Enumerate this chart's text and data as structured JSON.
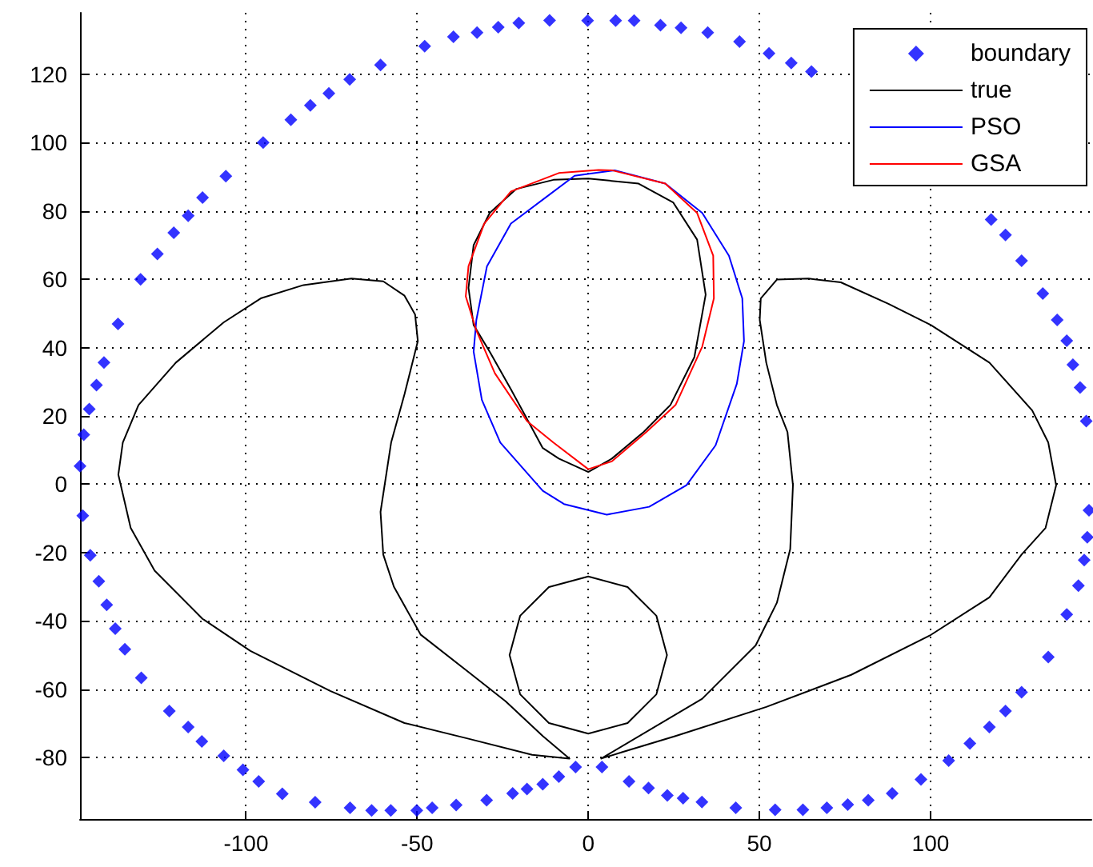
{
  "chart_data": {
    "type": "line",
    "xlim": [
      -148.5,
      147
    ],
    "ylim": [
      -98,
      138
    ],
    "xticks": [
      -100,
      -50,
      0,
      50,
      100
    ],
    "yticks": [
      -80,
      -60,
      -40,
      -20,
      0,
      20,
      40,
      60,
      80,
      100,
      120
    ],
    "grid": true,
    "legend": "top right",
    "marker": "none",
    "line_style": "solid",
    "series": [
      {
        "name": "boundary",
        "type": "scatter",
        "marker": "diamond",
        "color": "#0000ff",
        "x": [
          -147.4,
          -145.8,
          -143.7,
          -141.5,
          -137.4,
          -130.8,
          -125.9,
          -121.1,
          -116.9,
          -112.7,
          -105.9,
          -95,
          -86.9,
          -81.2,
          -75.8,
          -69.7,
          -60.7,
          -47.8,
          -39.4,
          -32.5,
          -26.3,
          -20.3,
          -11.3,
          -0.2,
          8,
          13.4,
          21.1,
          27.1,
          34.9,
          44.2,
          52.8,
          59.3,
          65.2,
          117.7,
          121.9,
          126.6,
          132.8,
          137,
          139.8,
          141.6,
          143.7,
          145.5,
          146.3,
          145.8,
          144.9,
          143.2,
          139.8,
          134.4,
          126.6,
          121.9,
          117.2,
          111.5,
          105.3,
          97.2,
          88.8,
          81.8,
          75.8,
          69.7,
          62.7,
          54.6,
          43.1,
          33.2,
          27.7,
          23.1,
          17.6,
          11.9,
          4,
          -3.7,
          -8.6,
          -13.3,
          -17.9,
          -22.1,
          -29.7,
          -38.6,
          -45.6,
          -50.1,
          -57.7,
          -63.3,
          -69.6,
          -79.8,
          -89.4,
          -96.3,
          -100.9,
          -106.5,
          -112.9,
          -116.9,
          -122.4,
          -130.6,
          -135.4,
          -138.2,
          -140.7,
          -143,
          -145.5,
          -147.7,
          -148.5
        ],
        "values": [
          14.5,
          22,
          29,
          35.6,
          46.9,
          60,
          67.4,
          73.6,
          78.6,
          83.9,
          90.2,
          100,
          106.7,
          110.9,
          114.4,
          118.5,
          122.7,
          128.2,
          131,
          132.2,
          133.8,
          135,
          135.8,
          135.7,
          135.7,
          135.7,
          134.4,
          133.6,
          132.2,
          129.6,
          126.1,
          123.3,
          120.8,
          77.5,
          73,
          65.4,
          55.8,
          48.1,
          42,
          35,
          28.3,
          18.5,
          -7.6,
          -15.5,
          -22.2,
          -29.7,
          -38.1,
          -50.6,
          -60.9,
          -66.4,
          -71.1,
          -75.9,
          -80.9,
          -86.4,
          -90.5,
          -92.5,
          -93.8,
          -94.7,
          -95.3,
          -95.3,
          -94.7,
          -93,
          -91.9,
          -91.1,
          -88.9,
          -87,
          -82.8,
          -82.8,
          -85.6,
          -87.8,
          -89.2,
          -90.5,
          -92.5,
          -93.9,
          -94.7,
          -95.5,
          -95.5,
          -95.5,
          -94.7,
          -93.1,
          -90.6,
          -87,
          -83.6,
          -79.5,
          -75.3,
          -71.1,
          -66.4,
          -56.7,
          -48.3,
          -42.3,
          -35.3,
          -28.4,
          -20.8,
          -9.2,
          5.3
        ]
      },
      {
        "name": "true",
        "color": "#000000",
        "x": [
          -5.5,
          -13.3,
          -24.1,
          -35,
          -49,
          -56.8,
          -59.9,
          -60.7,
          null,
          -60.7,
          -57.6,
          -53.7,
          -49.8,
          null,
          -49.8,
          -50.6,
          -53.7,
          -59.9,
          -69.2,
          -83.2,
          -95.7,
          -106.5,
          -120.5,
          -131.4,
          -136,
          -137.3,
          null,
          -137.3,
          -133.7,
          -126.7,
          -112.7,
          -98.7,
          -75.4,
          -53.7,
          -35,
          -16.4,
          -5.5,
          null,
          3.8,
          33.3,
          48.9,
          55.1,
          59,
          59.8,
          null,
          59.8,
          58.2,
          55.1,
          52,
          50.1,
          null,
          50.1,
          50.4,
          55.1,
          64.4,
          73.8,
          87.7,
          100.1,
          117.2,
          129.7,
          134.4,
          136.7,
          null,
          136.7,
          133.6,
          126.6,
          117.2,
          100.1,
          76.8,
          52,
          25.5,
          10,
          3.8,
          null,
          -35,
          -33.5,
          -28.8,
          -21.1,
          -10.2,
          0,
          14.7,
          24.8,
          31.8,
          34.3,
          null,
          34.3,
          31,
          24,
          16.2,
          6.9,
          0,
          -8.6,
          -13.3,
          -22.6,
          -28.8,
          -33.5,
          -35,
          null,
          -23,
          -19.9,
          -11.5,
          0,
          11.5,
          19.9,
          23,
          null,
          23,
          19.9,
          11.5,
          0,
          -11.5,
          -19.9,
          -23
        ],
        "values": [
          -80.3,
          -73.7,
          -63.6,
          -55,
          -44,
          -30,
          -20.6,
          -8.1,
          null,
          -8.1,
          12.2,
          26.3,
          41.9,
          null,
          41.9,
          49.7,
          55.2,
          59.4,
          60.2,
          58.3,
          54.4,
          47.4,
          35.6,
          23.2,
          12.2,
          2.8,
          null,
          2.8,
          -12.8,
          -25.3,
          -39.4,
          -48.8,
          -60.5,
          -69.9,
          -74.5,
          -79.2,
          -80.3,
          null,
          -80.3,
          -62.8,
          -47.2,
          -34.7,
          -19,
          -0.3,
          null,
          -0.3,
          15.3,
          23.2,
          35.6,
          48.1,
          null,
          48.1,
          54.4,
          59.9,
          60.2,
          59.1,
          52.8,
          46.6,
          35.6,
          21.6,
          12.2,
          -0.3,
          null,
          -0.3,
          -12.8,
          -20.6,
          -33.1,
          -44.1,
          -55.8,
          -65.2,
          -73.7,
          -78.4,
          -80.3,
          null,
          57.5,
          70,
          79.4,
          86.4,
          89.1,
          89.5,
          88,
          82.5,
          71.6,
          55.5,
          null,
          55.5,
          37.2,
          23.2,
          15.3,
          7.5,
          3.6,
          7.5,
          10.6,
          27.8,
          38.8,
          46.6,
          57.5,
          null,
          -50,
          -38.5,
          -30.1,
          -27,
          -30.1,
          -38.5,
          -50,
          null,
          -50,
          -61.5,
          -69.9,
          -73,
          -69.9,
          -61.5,
          -50
        ]
      },
      {
        "name": "PSO",
        "color": "#0000ff",
        "x": [
          -33.5,
          -32.7,
          -29.6,
          -22.6,
          -13.3,
          -4,
          7.7,
          22.5,
          33.3,
          41.1,
          45,
          45.5,
          null,
          45.5,
          43.4,
          37.2,
          28.7,
          17.8,
          5.4,
          -7.1,
          -13.3,
          -25.7,
          -31.1,
          -33.5
        ],
        "values": [
          38.8,
          48.1,
          63.8,
          76.3,
          83.3,
          90.3,
          91.9,
          88,
          79.4,
          66.9,
          54.4,
          41.9,
          null,
          41.9,
          29.4,
          11.4,
          -0.3,
          -6.6,
          -8.9,
          -5.8,
          -1.9,
          12.2,
          24.7,
          38.8
        ]
      },
      {
        "name": "GSA",
        "color": "#ff0000",
        "x": [
          -35.8,
          -35,
          -30.4,
          -22.6,
          -8.6,
          3,
          6.9,
          22.5,
          31.8,
          36.5,
          36.7,
          null,
          36.7,
          33.3,
          25.5,
          17,
          6.9,
          0,
          -10.2,
          -17.9,
          -27.3,
          -32.7,
          -35.8
        ],
        "values": [
          55,
          63.8,
          76.3,
          85.7,
          91.1,
          92,
          91.9,
          88,
          79.4,
          66.9,
          54.4,
          null,
          54.4,
          40.3,
          23.2,
          15.3,
          6.7,
          4.4,
          12.2,
          18.5,
          32.5,
          45,
          55
        ]
      }
    ]
  }
}
